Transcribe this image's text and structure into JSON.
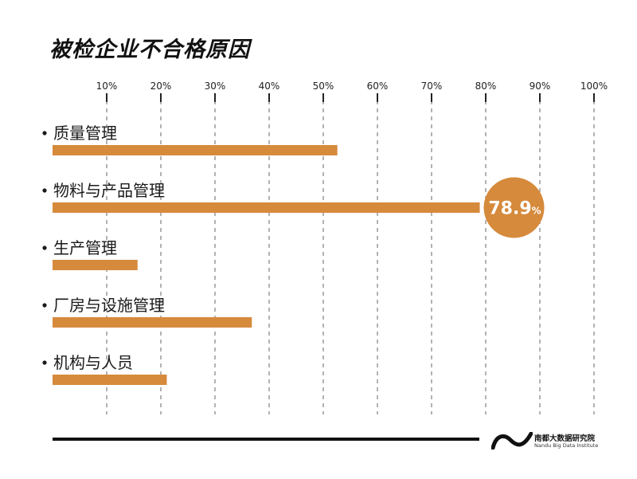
{
  "chart_data": {
    "type": "bar",
    "orientation": "horizontal",
    "title": "被检企业不合格原因",
    "categories": [
      "质量管理",
      "物料与产品管理",
      "生产管理",
      "厂房与设施管理",
      "机构与人员"
    ],
    "values": [
      52.6,
      78.9,
      15.7,
      36.8,
      21.1
    ],
    "unit": "%",
    "xlim": [
      0,
      100
    ],
    "ticks": [
      "10%",
      "20%",
      "30%",
      "40%",
      "50%",
      "60%",
      "70%",
      "80%",
      "90%",
      "100%"
    ],
    "highlight": {
      "category": "物料与产品管理",
      "value_text": "78.9",
      "unit_text": "%"
    },
    "grid": "vertical dashed",
    "colors": {
      "bar": "#D68A3C",
      "grid": "#999999",
      "text": "#1a1a1a"
    }
  },
  "footer": {
    "logo_cn": "南都大数据研究院",
    "logo_en": "Nandu Big Data Institute",
    "logo_icon": "wave-logo-icon"
  }
}
